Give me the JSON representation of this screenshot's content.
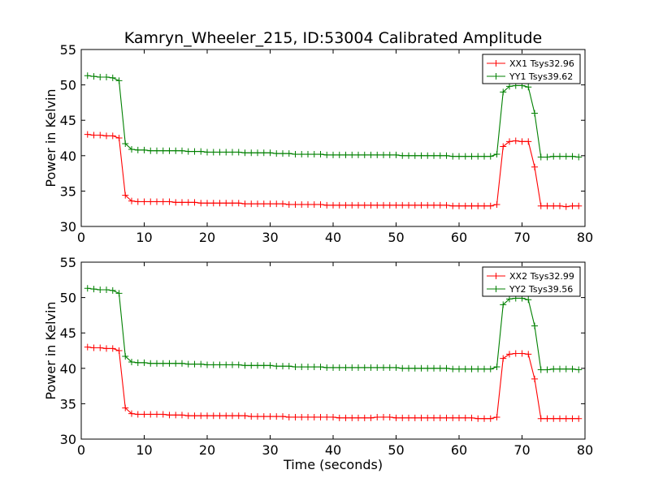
{
  "chart_data": {
    "title": "Kamryn_Wheeler_215, ID:53004 Calibrated Amplitude",
    "panels": [
      {
        "type": "line",
        "xlabel": "",
        "ylabel": "Power in Kelvin",
        "xlim": [
          0,
          80
        ],
        "ylim": [
          30,
          55
        ],
        "xticks": [
          0,
          10,
          20,
          30,
          40,
          50,
          60,
          70,
          80
        ],
        "yticks": [
          30,
          35,
          40,
          45,
          50,
          55
        ],
        "grid": false,
        "legend_position": "top-right",
        "x": [
          1,
          2,
          3,
          4,
          5,
          6,
          7,
          8,
          9,
          10,
          11,
          12,
          13,
          14,
          15,
          16,
          17,
          18,
          19,
          20,
          21,
          22,
          23,
          24,
          25,
          26,
          27,
          28,
          29,
          30,
          31,
          32,
          33,
          34,
          35,
          36,
          37,
          38,
          39,
          40,
          41,
          42,
          43,
          44,
          45,
          46,
          47,
          48,
          49,
          50,
          51,
          52,
          53,
          54,
          55,
          56,
          57,
          58,
          59,
          60,
          61,
          62,
          63,
          64,
          65,
          66,
          67,
          68,
          69,
          70,
          71,
          72,
          73,
          74,
          75,
          76,
          77,
          78,
          79
        ],
        "series": [
          {
            "name": "XX1 Tsys32.96",
            "color": "#ff0000",
            "values": [
              43.0,
              42.9,
              42.9,
              42.8,
              42.8,
              42.5,
              34.4,
              33.6,
              33.5,
              33.5,
              33.5,
              33.5,
              33.5,
              33.5,
              33.4,
              33.4,
              33.4,
              33.4,
              33.3,
              33.3,
              33.3,
              33.3,
              33.3,
              33.3,
              33.3,
              33.2,
              33.2,
              33.2,
              33.2,
              33.2,
              33.2,
              33.2,
              33.1,
              33.1,
              33.1,
              33.1,
              33.1,
              33.1,
              33.0,
              33.0,
              33.0,
              33.0,
              33.0,
              33.0,
              33.0,
              33.0,
              33.0,
              33.0,
              33.0,
              33.0,
              33.0,
              33.0,
              33.0,
              33.0,
              33.0,
              33.0,
              33.0,
              33.0,
              32.9,
              32.9,
              32.9,
              32.9,
              32.9,
              32.9,
              32.9,
              33.1,
              41.3,
              42.0,
              42.1,
              42.0,
              42.0,
              38.4,
              32.9,
              32.9,
              32.9,
              32.9,
              32.8,
              32.9,
              32.9
            ]
          },
          {
            "name": "YY1 Tsys39.62",
            "color": "#008000",
            "values": [
              51.3,
              51.2,
              51.1,
              51.1,
              51.0,
              50.6,
              41.7,
              40.9,
              40.8,
              40.8,
              40.7,
              40.7,
              40.7,
              40.7,
              40.7,
              40.7,
              40.6,
              40.6,
              40.6,
              40.5,
              40.5,
              40.5,
              40.5,
              40.5,
              40.5,
              40.4,
              40.4,
              40.4,
              40.4,
              40.4,
              40.3,
              40.3,
              40.3,
              40.2,
              40.2,
              40.2,
              40.2,
              40.2,
              40.1,
              40.1,
              40.1,
              40.1,
              40.1,
              40.1,
              40.1,
              40.1,
              40.1,
              40.1,
              40.1,
              40.1,
              40.0,
              40.0,
              40.0,
              40.0,
              40.0,
              40.0,
              40.0,
              40.0,
              39.9,
              39.9,
              39.9,
              39.9,
              39.9,
              39.9,
              39.9,
              40.2,
              49.0,
              49.8,
              49.9,
              49.9,
              49.7,
              46.0,
              39.8,
              39.8,
              39.9,
              39.9,
              39.9,
              39.9,
              39.8
            ]
          }
        ]
      },
      {
        "type": "line",
        "xlabel": "Time (seconds)",
        "ylabel": "Power in Kelvin",
        "xlim": [
          0,
          80
        ],
        "ylim": [
          30,
          55
        ],
        "xticks": [
          0,
          10,
          20,
          30,
          40,
          50,
          60,
          70,
          80
        ],
        "yticks": [
          30,
          35,
          40,
          45,
          50,
          55
        ],
        "grid": false,
        "legend_position": "top-right",
        "x": [
          1,
          2,
          3,
          4,
          5,
          6,
          7,
          8,
          9,
          10,
          11,
          12,
          13,
          14,
          15,
          16,
          17,
          18,
          19,
          20,
          21,
          22,
          23,
          24,
          25,
          26,
          27,
          28,
          29,
          30,
          31,
          32,
          33,
          34,
          35,
          36,
          37,
          38,
          39,
          40,
          41,
          42,
          43,
          44,
          45,
          46,
          47,
          48,
          49,
          50,
          51,
          52,
          53,
          54,
          55,
          56,
          57,
          58,
          59,
          60,
          61,
          62,
          63,
          64,
          65,
          66,
          67,
          68,
          69,
          70,
          71,
          72,
          73,
          74,
          75,
          76,
          77,
          78,
          79
        ],
        "series": [
          {
            "name": "XX2 Tsys32.99",
            "color": "#ff0000",
            "values": [
              43.0,
              42.9,
              42.9,
              42.8,
              42.8,
              42.5,
              34.4,
              33.6,
              33.5,
              33.5,
              33.5,
              33.5,
              33.5,
              33.4,
              33.4,
              33.4,
              33.3,
              33.3,
              33.3,
              33.3,
              33.3,
              33.3,
              33.3,
              33.3,
              33.3,
              33.3,
              33.2,
              33.2,
              33.2,
              33.2,
              33.2,
              33.2,
              33.1,
              33.1,
              33.1,
              33.1,
              33.1,
              33.1,
              33.1,
              33.1,
              33.0,
              33.0,
              33.0,
              33.0,
              33.0,
              33.0,
              33.1,
              33.1,
              33.1,
              33.0,
              33.0,
              33.0,
              33.0,
              33.0,
              33.0,
              33.0,
              33.0,
              33.0,
              33.0,
              33.0,
              33.0,
              33.0,
              32.9,
              32.9,
              32.9,
              33.1,
              41.4,
              42.0,
              42.1,
              42.1,
              42.0,
              38.5,
              32.9,
              32.9,
              32.9,
              32.9,
              32.9,
              32.9,
              32.9
            ]
          },
          {
            "name": "YY2 Tsys39.56",
            "color": "#008000",
            "values": [
              51.3,
              51.2,
              51.1,
              51.1,
              51.0,
              50.6,
              41.7,
              40.9,
              40.8,
              40.8,
              40.7,
              40.7,
              40.7,
              40.7,
              40.7,
              40.7,
              40.6,
              40.6,
              40.6,
              40.5,
              40.5,
              40.5,
              40.5,
              40.5,
              40.5,
              40.4,
              40.4,
              40.4,
              40.4,
              40.4,
              40.3,
              40.3,
              40.3,
              40.2,
              40.2,
              40.2,
              40.2,
              40.2,
              40.1,
              40.1,
              40.1,
              40.1,
              40.1,
              40.1,
              40.1,
              40.1,
              40.1,
              40.1,
              40.1,
              40.1,
              40.0,
              40.0,
              40.0,
              40.0,
              40.0,
              40.0,
              40.0,
              40.0,
              39.9,
              39.9,
              39.9,
              39.9,
              39.9,
              39.9,
              39.9,
              40.2,
              49.0,
              49.8,
              49.9,
              49.9,
              49.7,
              46.0,
              39.8,
              39.8,
              39.9,
              39.9,
              39.9,
              39.9,
              39.8
            ]
          }
        ]
      }
    ]
  }
}
